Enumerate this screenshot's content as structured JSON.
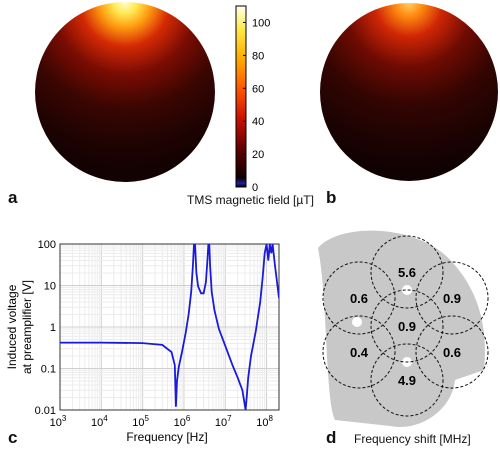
{
  "panels": {
    "a": {
      "letter": "a"
    },
    "b": {
      "letter": "b"
    },
    "c": {
      "letter": "c"
    },
    "d": {
      "letter": "d"
    }
  },
  "colorbar": {
    "label": "TMS magnetic field [µT]",
    "ticks": [
      "0",
      "20",
      "40",
      "60",
      "80",
      "100"
    ],
    "tick_values": [
      0,
      20,
      40,
      60,
      80,
      100
    ],
    "range": [
      0,
      110
    ],
    "colormap": "hot",
    "colors": {
      "low": "#000000",
      "mid": "#cc1100",
      "high": "#fffff0"
    }
  },
  "chart_data": [
    {
      "type": "heatmap",
      "panel": "a",
      "shape": "disc",
      "description_values": {
        "hotspot": "top",
        "max": 110,
        "min": 0
      },
      "colormap": "hot"
    },
    {
      "type": "heatmap",
      "panel": "b",
      "shape": "disc",
      "description_values": {
        "hotspot": "top",
        "max": 110,
        "min": 0
      },
      "colormap": "hot"
    },
    {
      "type": "line",
      "panel": "c",
      "xlabel": "Frequency [Hz]",
      "ylabel_line1": "Induced voltage",
      "ylabel_line2": "at preamplifier [V]",
      "xscale": "log",
      "yscale": "log",
      "xlim": [
        1000,
        200000000
      ],
      "ylim": [
        0.01,
        100
      ],
      "xticks": [
        1000,
        10000,
        100000,
        1000000,
        10000000,
        100000000
      ],
      "xtick_labels": [
        "10",
        "10",
        "10",
        "10",
        "10",
        "10"
      ],
      "xtick_exponents": [
        "3",
        "4",
        "5",
        "6",
        "7",
        "8"
      ],
      "yticks": [
        0.01,
        0.1,
        1,
        10,
        100
      ],
      "ytick_labels": [
        "0.01",
        "0.1",
        "1",
        "10",
        "100"
      ],
      "grid": true,
      "series_color": "#1a1adc",
      "series": [
        {
          "x": [
            1000,
            10000,
            100000,
            300000,
            500000,
            600000,
            640000,
            680000,
            750000,
            900000,
            1100000,
            1300000,
            1500000,
            1650000,
            1750000,
            1850000,
            2000000,
            2200000,
            2600000,
            3000000,
            3400000,
            3700000,
            3900000,
            4100000,
            4300000,
            4700000,
            5500000,
            7000000,
            10000000,
            15000000,
            20000000,
            26000000,
            29000000,
            31000000,
            33000000,
            36000000,
            42000000,
            55000000,
            70000000,
            80000000,
            90000000,
            100000000,
            110000000,
            120000000,
            130000000,
            140000000,
            160000000,
            200000000
          ],
          "y": [
            0.42,
            0.42,
            0.41,
            0.37,
            0.25,
            0.12,
            0.012,
            0.05,
            0.11,
            0.25,
            0.7,
            2.0,
            7.0,
            30,
            100,
            100,
            20,
            9.5,
            6.5,
            6.5,
            12,
            40,
            100,
            100,
            30,
            7.0,
            2.5,
            0.9,
            0.35,
            0.12,
            0.06,
            0.03,
            0.015,
            0.01,
            0.02,
            0.06,
            0.2,
            0.8,
            4,
            15,
            60,
            100,
            40,
            100,
            60,
            100,
            30,
            5
          ]
        }
      ]
    },
    {
      "type": "diagram",
      "panel": "d",
      "caption": "Frequency shift [MHz]",
      "fill_color": "#c8c8c8",
      "coils": [
        {
          "label": "5.6"
        },
        {
          "label": "0.6"
        },
        {
          "label": "0.9"
        },
        {
          "label": "0.9"
        },
        {
          "label": "0.4"
        },
        {
          "label": "0.6"
        },
        {
          "label": "4.9"
        }
      ]
    }
  ]
}
